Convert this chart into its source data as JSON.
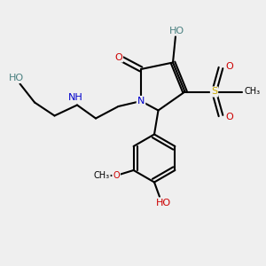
{
  "bg_color": "#efefef",
  "bond_color": "#000000",
  "O_color": "#cc0000",
  "N_color": "#0000cc",
  "S_color": "#ccaa00",
  "H_color": "#4a8080",
  "C_color": "#000000",
  "lw": 1.5,
  "fs": 8.0,
  "fs_s": 7.0,
  "xlim": [
    0,
    10
  ],
  "ylim": [
    0,
    10
  ]
}
